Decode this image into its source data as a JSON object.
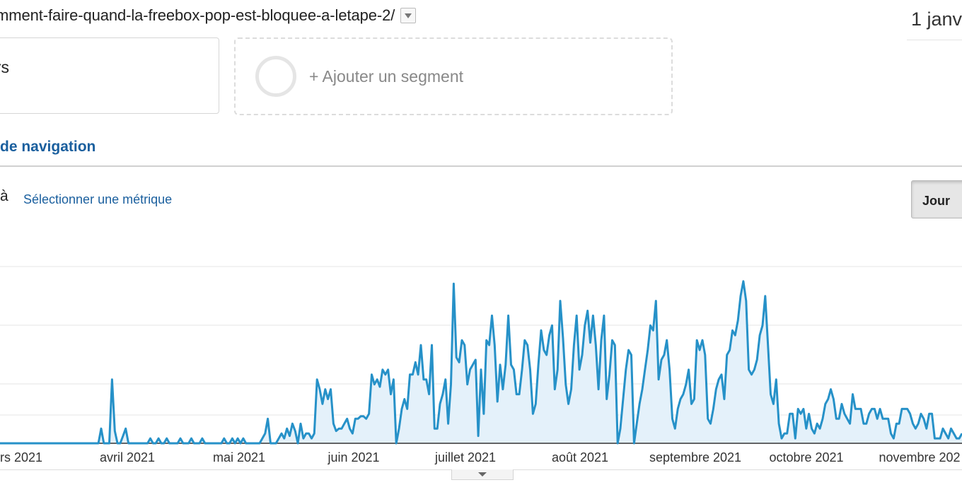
{
  "header": {
    "url": "mment-faire-quand-la-freebox-pop-est-bloquee-a-letape-2/",
    "date_range": "1 janv"
  },
  "segments": {
    "current": "urs",
    "add_label": "+ Ajouter un segment"
  },
  "tab": {
    "label": "de navigation"
  },
  "metric_bar": {
    "vs_label": "à",
    "select_metric": "Sélectionner une métrique",
    "granularity_active": "Jour"
  },
  "colors": {
    "line": "#2691c8",
    "fill": "#e4f1fa",
    "link": "#1a5f9e"
  },
  "chart_data": {
    "type": "area",
    "x_month_labels": [
      "rs 2021",
      "avril 2021",
      "mai 2021",
      "juin 2021",
      "juillet 2021",
      "août 2021",
      "septembre 2021",
      "octobre 2021",
      "novembre 202"
    ],
    "y_gridlines": 4,
    "grid": true,
    "series": [
      {
        "values": [
          0,
          0,
          0,
          0,
          0,
          0,
          0,
          0,
          0,
          0,
          0,
          0,
          0,
          0,
          0,
          0,
          0,
          0,
          0,
          0,
          0,
          0,
          0,
          0,
          0,
          0,
          0,
          0,
          0,
          0,
          0,
          0,
          0,
          0,
          0,
          0,
          0,
          6,
          0,
          0,
          0,
          26,
          5,
          0,
          0,
          3,
          6,
          0,
          0,
          0,
          0,
          0,
          0,
          0,
          0,
          2,
          0,
          0,
          2,
          0,
          0,
          2,
          0,
          0,
          0,
          0,
          2,
          0,
          0,
          0,
          2,
          0,
          0,
          0,
          2,
          0,
          0,
          0,
          0,
          0,
          0,
          0,
          2,
          0,
          0,
          2,
          0,
          2,
          0,
          2,
          0,
          0,
          0,
          0,
          0,
          0,
          2,
          4,
          10,
          0,
          0,
          0,
          2,
          4,
          2,
          6,
          3,
          8,
          5,
          0,
          8,
          2,
          4,
          4,
          2,
          4,
          26,
          22,
          16,
          22,
          18,
          22,
          8,
          5,
          6,
          6,
          8,
          10,
          6,
          4,
          10,
          10,
          11,
          11,
          10,
          12,
          28,
          24,
          26,
          23,
          30,
          28,
          30,
          20,
          26,
          0,
          6,
          14,
          18,
          14,
          28,
          28,
          33,
          28,
          40,
          26,
          26,
          20,
          40,
          6,
          6,
          16,
          20,
          26,
          8,
          24,
          65,
          35,
          33,
          42,
          40,
          24,
          30,
          32,
          34,
          3,
          30,
          12,
          42,
          40,
          52,
          40,
          17,
          32,
          22,
          32,
          52,
          32,
          30,
          20,
          20,
          30,
          42,
          40,
          30,
          12,
          16,
          32,
          46,
          38,
          36,
          44,
          48,
          22,
          30,
          58,
          43,
          24,
          16,
          22,
          40,
          52,
          30,
          36,
          48,
          54,
          41,
          52,
          40,
          22,
          42,
          52,
          18,
          28,
          42,
          40,
          0,
          6,
          18,
          30,
          38,
          36,
          0,
          8,
          16,
          22,
          30,
          38,
          48,
          46,
          58,
          26,
          34,
          36,
          42,
          30,
          10,
          6,
          14,
          18,
          20,
          24,
          30,
          16,
          18,
          42,
          38,
          42,
          36,
          10,
          8,
          14,
          22,
          26,
          28,
          18,
          36,
          38,
          46,
          44,
          50,
          60,
          66,
          58,
          30,
          28,
          30,
          34,
          44,
          48,
          60,
          40,
          20,
          16,
          26,
          8,
          2,
          4,
          4,
          12,
          12,
          2,
          14,
          12,
          14,
          6,
          12,
          6,
          4,
          8,
          6,
          10,
          16,
          18,
          22,
          18,
          10,
          10,
          16,
          12,
          10,
          8,
          20,
          14,
          14,
          14,
          8,
          8,
          12,
          14,
          14,
          10,
          14,
          10,
          10,
          10,
          4,
          2,
          8,
          8,
          14,
          14,
          14,
          12,
          8,
          6,
          8,
          12,
          10,
          6,
          12,
          12,
          2,
          2,
          2,
          6,
          4,
          2,
          6,
          4,
          2,
          2,
          4
        ]
      }
    ]
  }
}
